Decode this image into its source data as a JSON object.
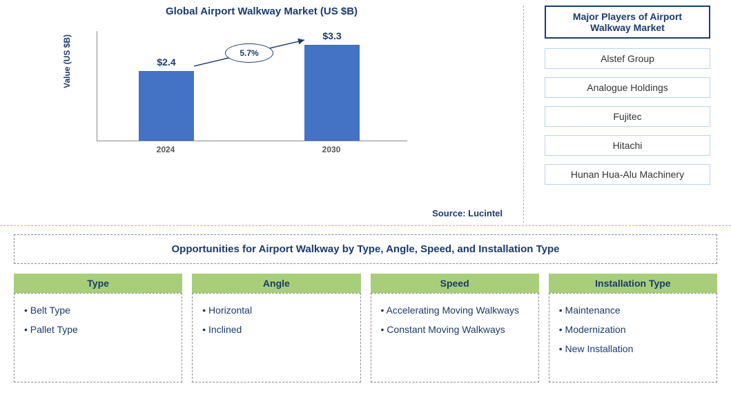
{
  "chart": {
    "title": "Global Airport Walkway Market (US $B)",
    "y_axis_label": "Value (US $B)",
    "type": "bar",
    "categories": [
      "2024",
      "2030"
    ],
    "values": [
      2.4,
      3.3
    ],
    "value_labels": [
      "$2.4",
      "$3.3"
    ],
    "bar_color": "#4472c4",
    "ylim_max": 3.8,
    "growth_label": "5.7%",
    "axis_color": "#888888",
    "text_color": "#1a3a6e",
    "source": "Source: Lucintel"
  },
  "players": {
    "header": "Major Players of Airport Walkway Market",
    "items": [
      "Alstef Group",
      "Analogue Holdings",
      "Fujitec",
      "Hitachi",
      "Hunan Hua-Alu Machinery"
    ],
    "header_border_color": "#1a3a6e",
    "item_border_color": "#b8d4e8"
  },
  "opportunities": {
    "header": "Opportunities for Airport Walkway by Type, Angle, Speed, and Installation Type",
    "header_bg": "#a8ce7a",
    "categories": [
      {
        "title": "Type",
        "items": [
          "Belt Type",
          "Pallet Type"
        ]
      },
      {
        "title": "Angle",
        "items": [
          "Horizontal",
          "Inclined"
        ]
      },
      {
        "title": "Speed",
        "items": [
          "Accelerating Moving Walkways",
          "Constant Moving Walkways"
        ]
      },
      {
        "title": "Installation Type",
        "items": [
          "Maintenance",
          "Modernization",
          "New Installation"
        ]
      }
    ]
  }
}
